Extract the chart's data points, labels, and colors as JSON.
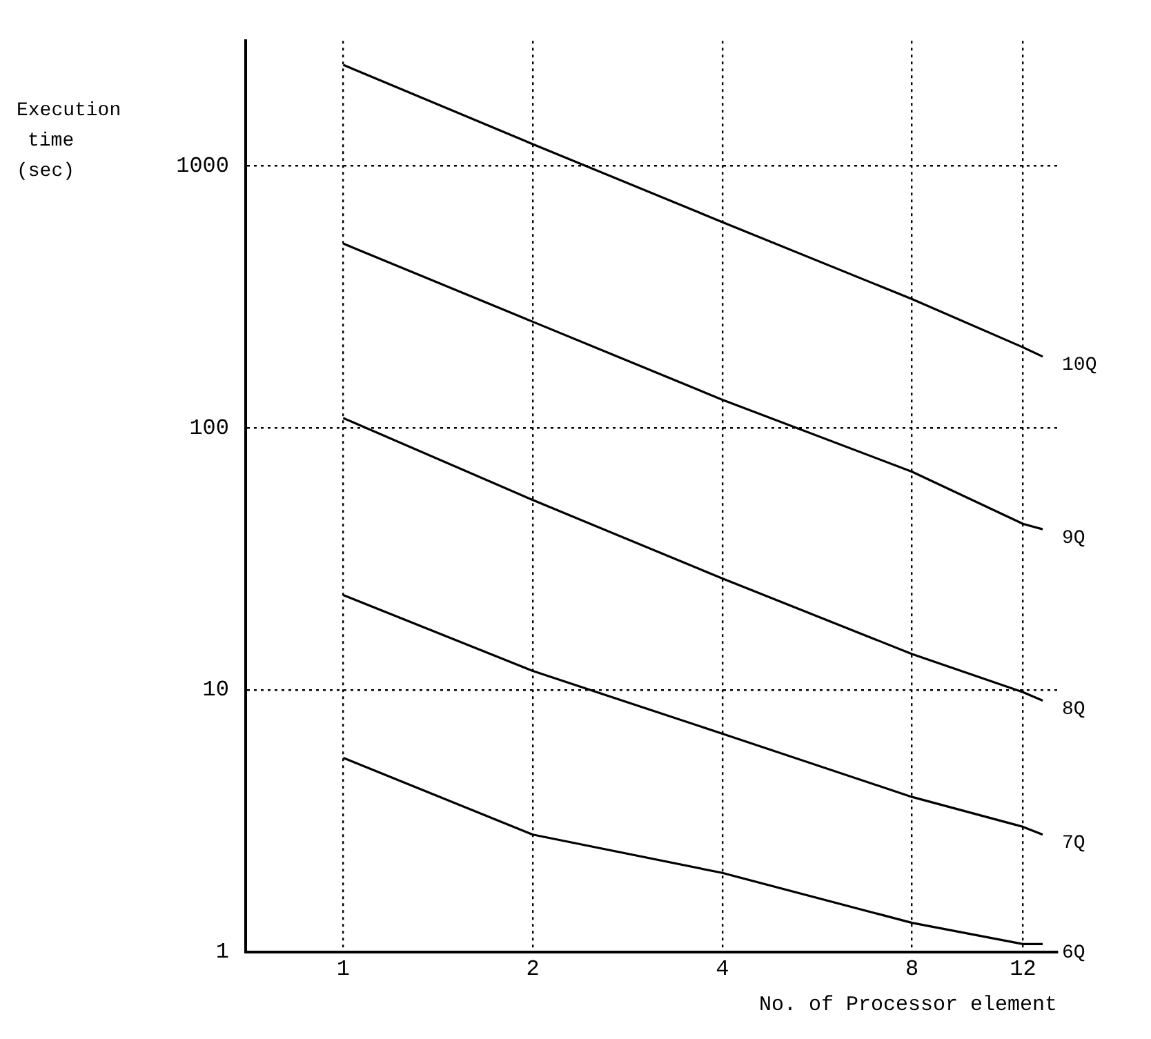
{
  "chart_data": {
    "type": "line",
    "xlabel": "No. of Processor element",
    "ylabel": "Execution time (sec)",
    "log": "xy",
    "grid": true,
    "legend": false,
    "marker": "none",
    "line_style": "solid",
    "xlim": [
      0.7,
      13.6
    ],
    "xticks": [
      1,
      2,
      4,
      8,
      12
    ],
    "ylim": [
      1,
      3000
    ],
    "yticks": [
      1,
      10,
      100,
      1000
    ],
    "series": [
      {
        "name": "10Q",
        "color": "#000000",
        "x": [
          1,
          2,
          4,
          8,
          12,
          12.9
        ],
        "values": [
          2430,
          1210,
          610,
          310,
          203,
          187
        ]
      },
      {
        "name": "9Q",
        "color": "#000000",
        "x": [
          1,
          2,
          4,
          8,
          12,
          12.9
        ],
        "values": [
          505,
          254,
          128,
          68,
          43,
          41
        ]
      },
      {
        "name": "8Q",
        "color": "#000000",
        "x": [
          1,
          2,
          4,
          8,
          12,
          12.9
        ],
        "values": [
          109,
          53,
          26.6,
          13.7,
          9.8,
          9.1
        ]
      },
      {
        "name": "7Q",
        "color": "#000000",
        "x": [
          1,
          2,
          4,
          8,
          12,
          12.9
        ],
        "values": [
          23,
          11.8,
          6.8,
          3.9,
          3.0,
          2.8
        ]
      },
      {
        "name": "6Q",
        "color": "#000000",
        "x": [
          1,
          2,
          4,
          8,
          12,
          12.9
        ],
        "values": [
          5.5,
          2.8,
          2.0,
          1.29,
          1.07,
          1.07
        ]
      }
    ]
  }
}
